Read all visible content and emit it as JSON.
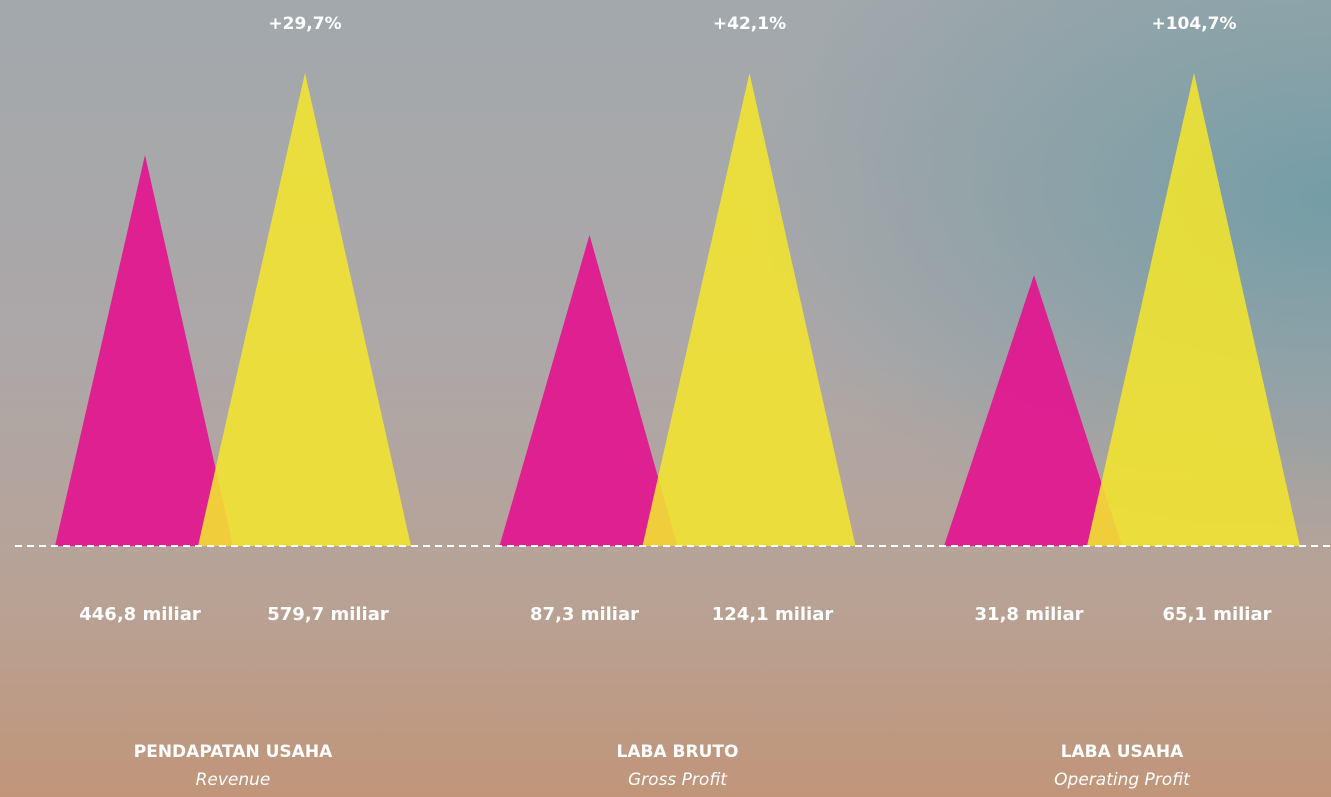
{
  "groups": [
    {
      "title": "PENDAPATAN USAHA",
      "subtitle": "Revenue",
      "previous": "446,8 miliar",
      "current": "579,7 miliar",
      "change": "+29,7%"
    },
    {
      "title": "LABA BRUTO",
      "subtitle": "Gross Profit",
      "previous": "87,3 miliar",
      "current": "124,1 miliar",
      "change": "+42,1%"
    },
    {
      "title": "LABA USAHA",
      "subtitle": "Operating Profit",
      "previous": "31,8 miliar",
      "current": "65,1 miliar",
      "change": "+104,7%"
    }
  ]
}
